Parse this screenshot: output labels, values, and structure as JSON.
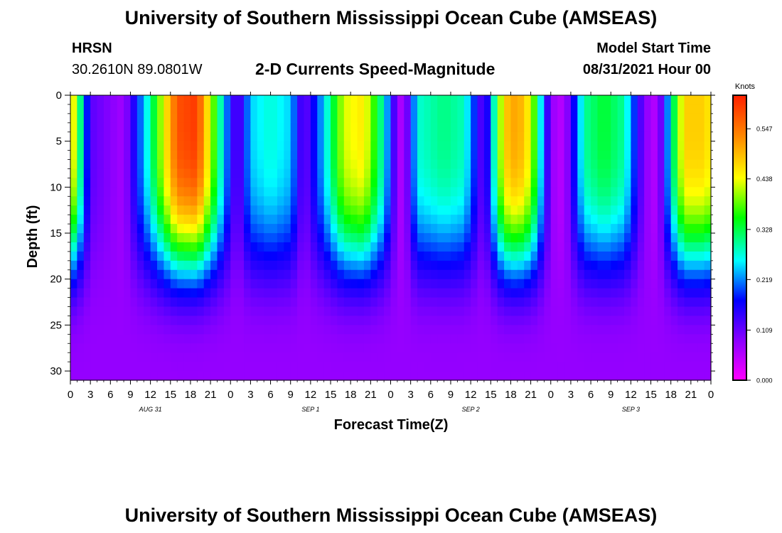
{
  "header": {
    "title": "University of Southern Mississippi Ocean Cube (AMSEAS)",
    "station": "HRSN",
    "coords": "30.2610N  89.0801W",
    "plot_title": "2-D Currents Speed-Magnitude",
    "model_label": "Model Start Time",
    "model_time": "08/31/2021 Hour 00"
  },
  "footer": {
    "title": "University of Southern Mississippi Ocean Cube (AMSEAS)"
  },
  "chart_data": {
    "type": "heatmap",
    "title": "2-D Currents Speed-Magnitude",
    "xlabel": "Forecast Time(Z)",
    "ylabel": "Depth (ft)",
    "xlim": [
      0,
      96
    ],
    "ylim": [
      0,
      31
    ],
    "y_inverted": true,
    "x_hour_ticks": [
      "0",
      "3",
      "6",
      "9",
      "12",
      "15",
      "18",
      "21",
      "0",
      "3",
      "6",
      "9",
      "12",
      "15",
      "18",
      "21",
      "0",
      "3",
      "6",
      "9",
      "12",
      "15",
      "18",
      "21",
      "0",
      "3",
      "6",
      "9",
      "12",
      "15",
      "18",
      "21",
      "0"
    ],
    "y_ticks": [
      0,
      5,
      10,
      15,
      20,
      25,
      30
    ],
    "y_tick_labels": [
      "0",
      "5",
      "10",
      "15",
      "20",
      "25",
      "30"
    ],
    "date_labels": [
      {
        "label": "AUG 31",
        "hour": 12
      },
      {
        "label": "SEP 1",
        "hour": 36
      },
      {
        "label": "SEP 2",
        "hour": 60
      },
      {
        "label": "SEP 3",
        "hour": 84
      }
    ],
    "colorbar": {
      "title": "Knots",
      "min": 0.0,
      "max": 0.62,
      "ticks": [
        0.0,
        0.109,
        0.219,
        0.328,
        0.438,
        0.547
      ],
      "tick_labels": [
        "0.000",
        "0.109",
        "0.219",
        "0.328",
        "0.438",
        "0.547"
      ],
      "colors": [
        "#ff00ff",
        "#8a00ff",
        "#0000ff",
        "#00ffff",
        "#00ff00",
        "#ffff00",
        "#ff8c00",
        "#ff2000"
      ]
    },
    "surface_speed_profile": {
      "x_hours": [
        0,
        3,
        5,
        8,
        12,
        16,
        19,
        23,
        25,
        27,
        30,
        33,
        35,
        38,
        41,
        44,
        47,
        49,
        50,
        52,
        56,
        59,
        62,
        65,
        67,
        69,
        72,
        74,
        77,
        80,
        83,
        86,
        88,
        90,
        92,
        95,
        96
      ],
      "values": [
        0.5,
        0.12,
        0.1,
        0.07,
        0.3,
        0.58,
        0.6,
        0.25,
        0.1,
        0.25,
        0.28,
        0.25,
        0.1,
        0.25,
        0.43,
        0.46,
        0.28,
        0.08,
        0.05,
        0.28,
        0.31,
        0.29,
        0.1,
        0.48,
        0.52,
        0.44,
        0.08,
        0.05,
        0.3,
        0.34,
        0.3,
        0.09,
        0.05,
        0.28,
        0.48,
        0.48,
        0.45
      ]
    },
    "depth_decay_ft": 19,
    "bottom_value": 0.08
  }
}
